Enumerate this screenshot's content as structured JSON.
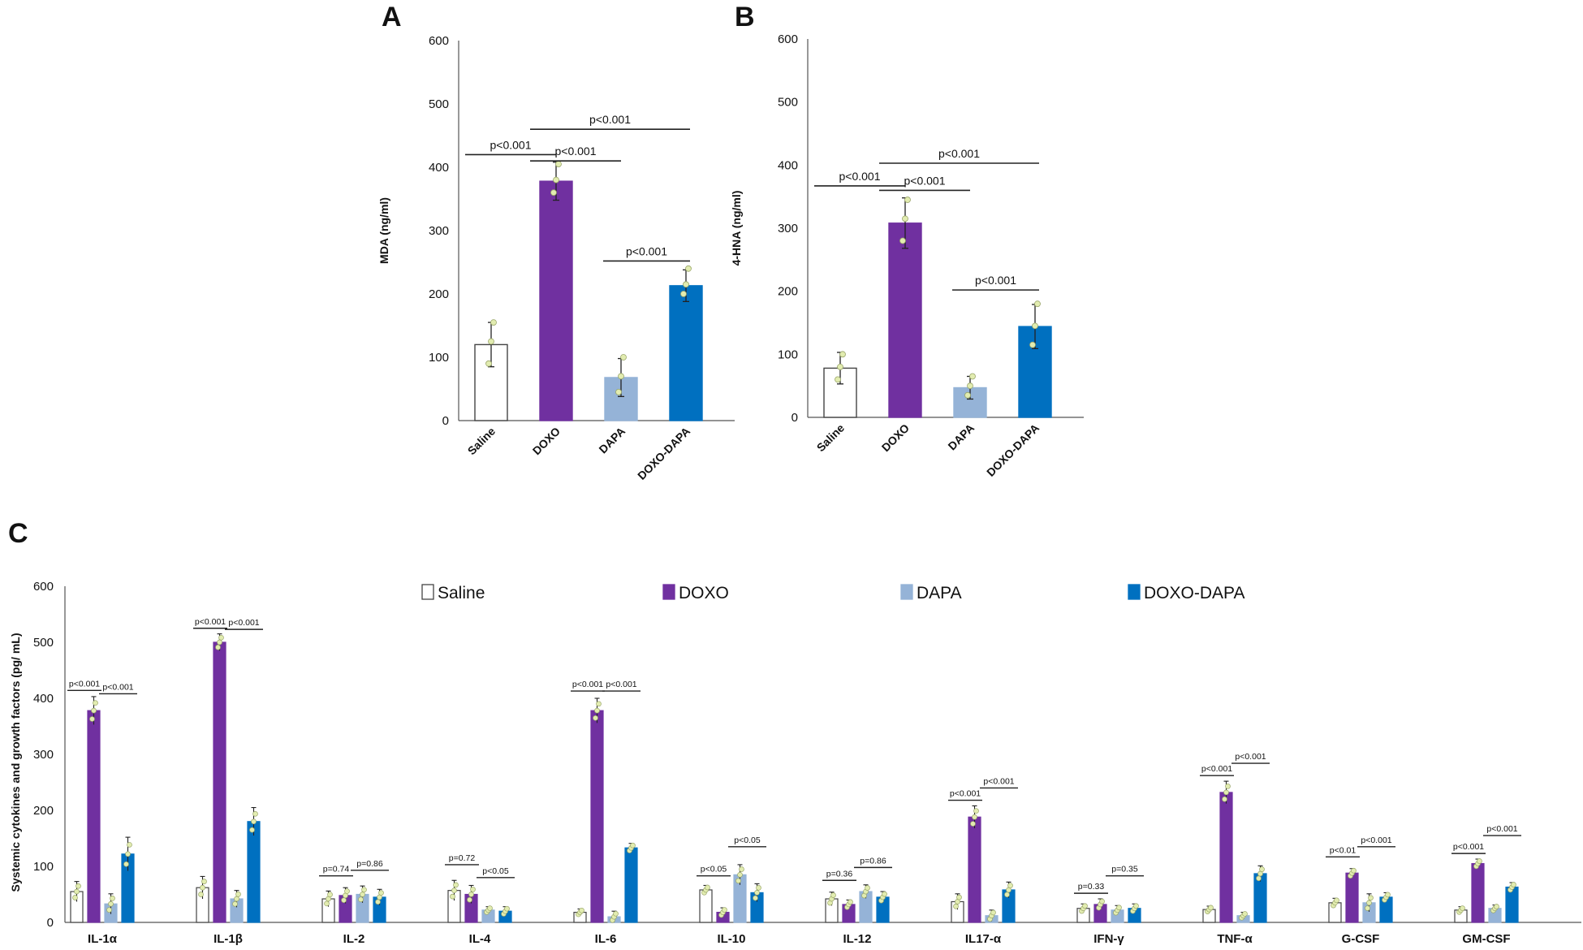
{
  "colors": {
    "Saline": "#ffffff",
    "DOXO": "#7030a0",
    "DAPA": "#95b3d7",
    "DOXO-DAPA": "#0070c0",
    "dot": "#e2ecb0"
  },
  "chart_data": [
    {
      "panel": "A",
      "type": "bar",
      "ylabel": "MDA (ng/ml)",
      "ylim": [
        0,
        600
      ],
      "yticks": [
        0,
        100,
        200,
        300,
        400,
        500,
        600
      ],
      "categories": [
        "Saline",
        "DOXO",
        "DAPA",
        "DOXO-DAPA"
      ],
      "values": [
        120,
        378,
        68,
        213
      ],
      "errors": [
        35,
        30,
        30,
        25
      ],
      "points": [
        [
          90,
          125,
          155
        ],
        [
          360,
          380,
          405
        ],
        [
          45,
          70,
          100
        ],
        [
          200,
          215,
          240
        ]
      ],
      "significance": [
        {
          "from": 0,
          "to": 1,
          "label": "p<0.001",
          "y": 420
        },
        {
          "from": 1,
          "to": 3,
          "label": "p<0.001",
          "y": 460
        },
        {
          "from": 1,
          "to": 2,
          "label": "p<0.001",
          "y": 410
        },
        {
          "from": 2,
          "to": 3,
          "label": "p<0.001",
          "y": 252
        }
      ]
    },
    {
      "panel": "B",
      "type": "bar",
      "ylabel": "4-HNA (ng/ml)",
      "ylim": [
        0,
        600
      ],
      "yticks": [
        0,
        100,
        200,
        300,
        400,
        500,
        600
      ],
      "categories": [
        "Saline",
        "DOXO",
        "DAPA",
        "DOXO-DAPA"
      ],
      "values": [
        78,
        308,
        47,
        144
      ],
      "errors": [
        25,
        40,
        18,
        35
      ],
      "points": [
        [
          60,
          80,
          100
        ],
        [
          280,
          315,
          345
        ],
        [
          35,
          50,
          65
        ],
        [
          115,
          145,
          180
        ]
      ],
      "significance": [
        {
          "from": 0,
          "to": 1,
          "label": "p<0.001",
          "y": 367
        },
        {
          "from": 1,
          "to": 3,
          "label": "p<0.001",
          "y": 403
        },
        {
          "from": 1,
          "to": 2,
          "label": "p<0.001",
          "y": 360
        },
        {
          "from": 2,
          "to": 3,
          "label": "p<0.001",
          "y": 202
        }
      ]
    },
    {
      "panel": "C",
      "type": "bar",
      "ylabel": "Systemic cytokines and growth factors  (pg/ mL)",
      "ylim": [
        0,
        600
      ],
      "yticks": [
        0,
        100,
        200,
        300,
        400,
        500,
        600
      ],
      "categories": [
        "IL-1α",
        "IL-1β",
        "IL-2",
        "IL-4",
        "IL-6",
        "IL-10",
        "IL-12",
        "IL17-α",
        "IFN-γ",
        "TNF-α",
        "G-CSF",
        "GM-CSF"
      ],
      "series": [
        {
          "name": "Saline",
          "values": [
            55,
            62,
            42,
            57,
            18,
            58,
            42,
            37,
            25,
            23,
            35,
            22
          ],
          "errors": [
            18,
            20,
            14,
            18,
            6,
            8,
            12,
            14,
            8,
            6,
            8,
            6
          ]
        },
        {
          "name": "DOXO",
          "values": [
            378,
            500,
            48,
            50,
            378,
            18,
            32,
            188,
            32,
            232,
            88,
            105
          ],
          "errors": [
            25,
            15,
            14,
            16,
            22,
            8,
            8,
            20,
            10,
            20,
            8,
            8
          ]
        },
        {
          "name": "DAPA",
          "values": [
            33,
            42,
            50,
            22,
            10,
            85,
            55,
            12,
            22,
            12,
            35,
            25
          ],
          "errors": [
            18,
            15,
            15,
            6,
            10,
            18,
            12,
            10,
            8,
            6,
            16,
            6
          ]
        },
        {
          "name": "DOXO-DAPA",
          "values": [
            122,
            180,
            45,
            20,
            133,
            53,
            45,
            58,
            25,
            87,
            45,
            63
          ],
          "errors": [
            30,
            25,
            14,
            8,
            8,
            16,
            10,
            14,
            8,
            14,
            8,
            8
          ]
        }
      ],
      "significance": [
        {
          "category": 0,
          "left": "p<0.001",
          "right": "p<0.001",
          "yl": 414,
          "yr": 408
        },
        {
          "category": 1,
          "left": "p<0.001",
          "right": "p<0.001",
          "yl": 525,
          "yr": 523
        },
        {
          "category": 2,
          "left": "p=0.74",
          "right": "p=0.86",
          "yl": 83,
          "yr": 93
        },
        {
          "category": 3,
          "left": "p=0.72",
          "right": "p<0.05",
          "yl": 103,
          "yr": 80
        },
        {
          "category": 4,
          "left": "p<0.001",
          "right": "p<0.001",
          "yl": 413,
          "yr": 413
        },
        {
          "category": 5,
          "left": "p<0.05",
          "right": "p<0.05",
          "yl": 83,
          "yr": 135
        },
        {
          "category": 6,
          "left": "p=0.36",
          "right": "p=0.86",
          "yl": 75,
          "yr": 98
        },
        {
          "category": 7,
          "left": "p<0.001",
          "right": "p<0.001",
          "yl": 218,
          "yr": 240
        },
        {
          "category": 8,
          "left": "p=0.33",
          "right": "p=0.35",
          "yl": 52,
          "yr": 83
        },
        {
          "category": 9,
          "left": "p<0.001",
          "right": "p<0.001",
          "yl": 262,
          "yr": 284
        },
        {
          "category": 10,
          "left": "p<0.01",
          "right": "p<0.001",
          "yl": 117,
          "yr": 135
        },
        {
          "category": 11,
          "left": "p<0.001",
          "right": "p<0.001",
          "yl": 123,
          "yr": 155
        }
      ]
    }
  ]
}
